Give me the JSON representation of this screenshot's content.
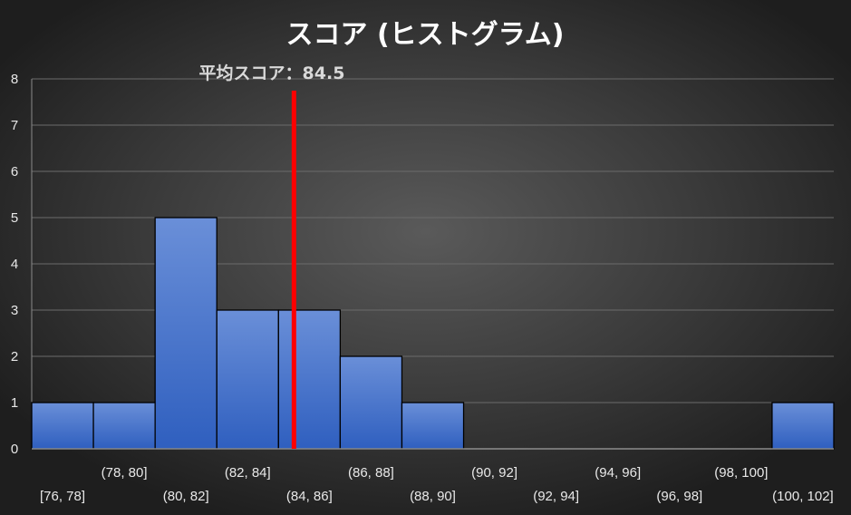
{
  "chart_data": {
    "type": "bar",
    "title": "スコア (ヒストグラム)",
    "categories": [
      "[76, 78]",
      "(78, 80]",
      "(80, 82]",
      "(82, 84]",
      "(84, 86]",
      "(86, 88]",
      "(88, 90]",
      "(90, 92]",
      "(92, 94]",
      "(94, 96]",
      "(96, 98]",
      "(98, 100]",
      "(100, 102]"
    ],
    "values": [
      1,
      1,
      5,
      3,
      3,
      2,
      1,
      0,
      0,
      0,
      0,
      0,
      1
    ],
    "bin_range": [
      76,
      102
    ],
    "ylim": [
      0,
      8
    ],
    "yticks": [
      "0",
      "1",
      "2",
      "3",
      "4",
      "5",
      "6",
      "7",
      "8"
    ],
    "grid": true,
    "bar_color": "#4472c4",
    "mean_line": {
      "value": 84.5,
      "label": "平均スコア：84.5",
      "color": "#ff0000"
    }
  }
}
